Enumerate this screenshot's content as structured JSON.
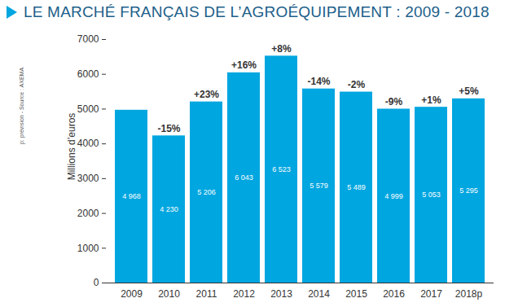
{
  "chart_data": {
    "type": "bar",
    "title": "LE MARCHÉ FRANÇAIS DE L’AGROÉQUIPEMENT : 2009 - 2018",
    "y_label": "Millions d’euros",
    "note": "p: prévision - Source : AXEMA",
    "categories": [
      "2009",
      "2010",
      "2011",
      "2012",
      "2013",
      "2014",
      "2015",
      "2016",
      "2017",
      "2018p"
    ],
    "values": [
      4968,
      4230,
      5206,
      6043,
      6523,
      5579,
      5489,
      4999,
      5053,
      5295
    ],
    "value_labels": [
      "4 968",
      "4 230",
      "5 206",
      "6 043",
      "6 523",
      "5 579",
      "5 489",
      "4 999",
      "5 053",
      "5 295"
    ],
    "annotations": [
      null,
      "-15%",
      "+23%",
      "+16%",
      "+8%",
      "-14%",
      "-2%",
      "-9%",
      "+1%",
      "+5%"
    ],
    "color": "#00a6e0",
    "ylim": [
      0,
      7000
    ],
    "yticks": [
      0,
      1000,
      2000,
      3000,
      4000,
      5000,
      6000,
      7000
    ],
    "grid": false,
    "data_labels": true
  }
}
